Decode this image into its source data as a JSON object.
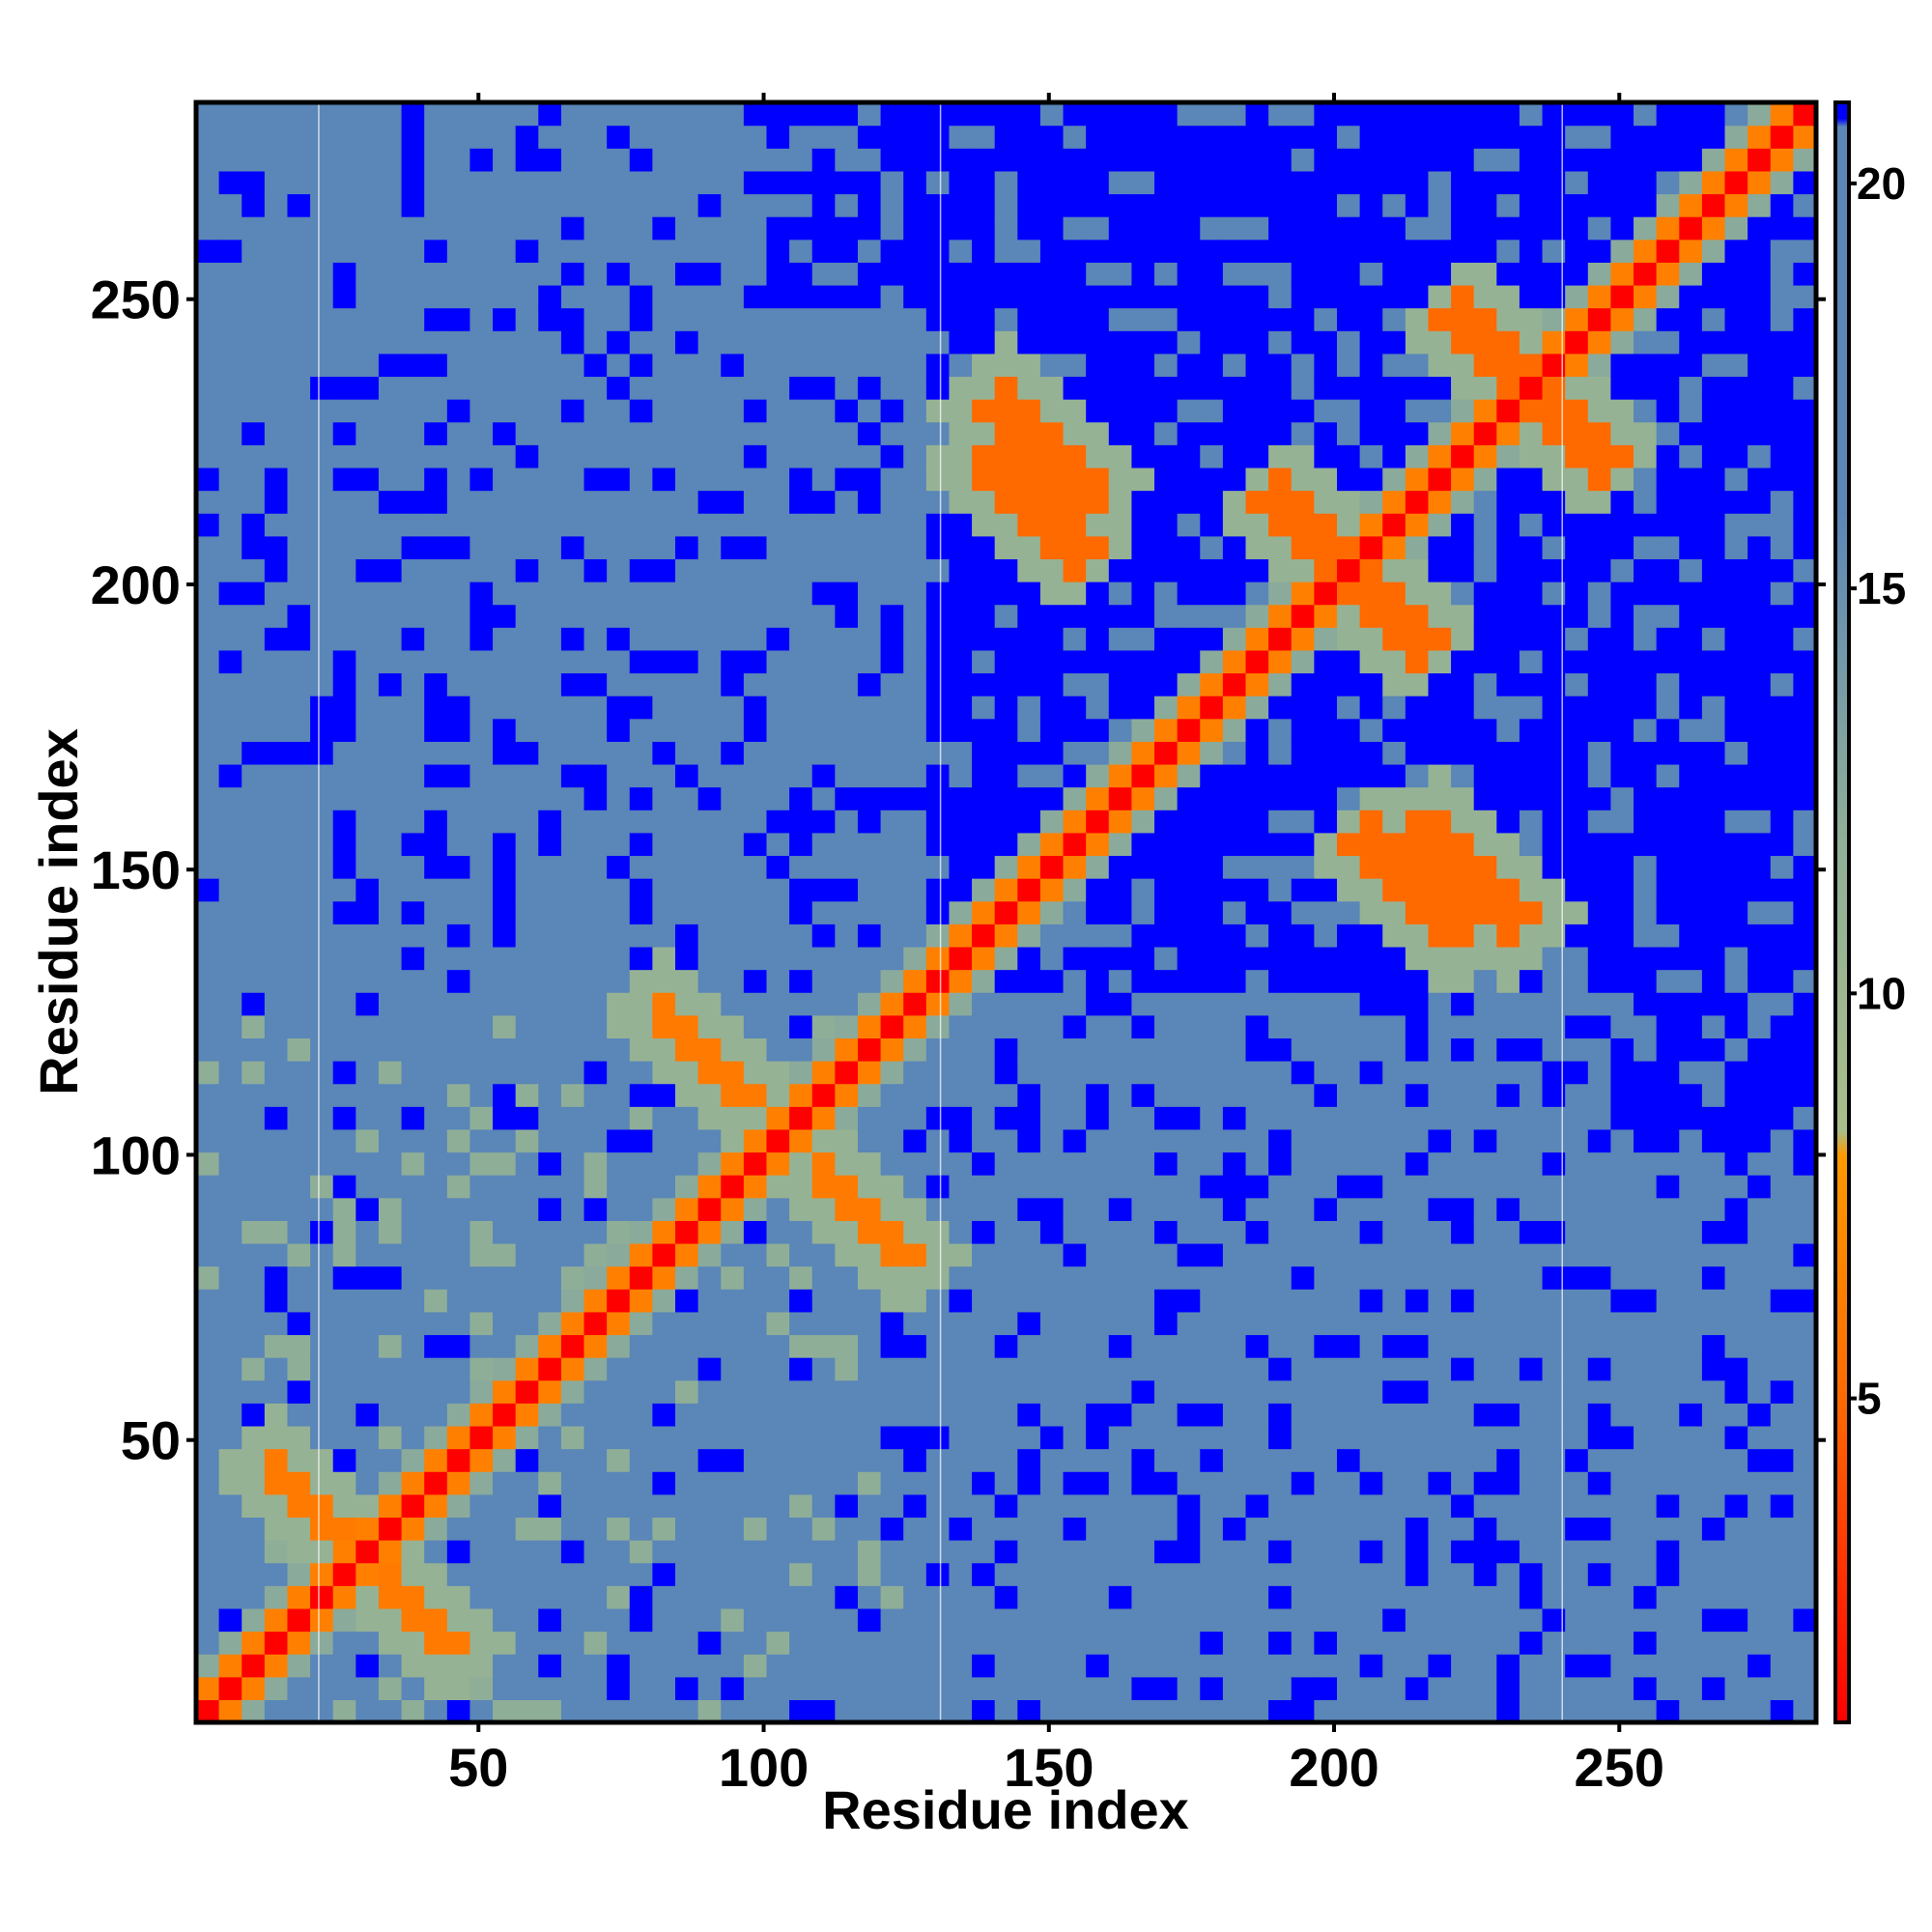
{
  "chart_data": {
    "type": "heatmap",
    "title": "",
    "xlabel": "Residue index",
    "ylabel": "Residue index",
    "x_range": [
      1,
      284
    ],
    "y_range": [
      1,
      284
    ],
    "x_ticks": [
      50,
      100,
      150,
      200,
      250
    ],
    "y_ticks": [
      50,
      100,
      150,
      200,
      250
    ],
    "colorbar": {
      "range": [
        1,
        21
      ],
      "ticks": [
        5,
        10,
        15,
        20
      ],
      "stops": [
        {
          "value": 1,
          "color": "#ff0000"
        },
        {
          "value": 5,
          "color": "#ff6a00"
        },
        {
          "value": 8,
          "color": "#ff9900"
        },
        {
          "value": 8.3,
          "color": "#a9be88"
        },
        {
          "value": 12,
          "color": "#8fae98"
        },
        {
          "value": 16,
          "color": "#5a86b8"
        },
        {
          "value": 20.7,
          "color": "#5a86b8"
        },
        {
          "value": 20.8,
          "color": "#0000ff"
        },
        {
          "value": 21,
          "color": "#0000ff"
        }
      ]
    },
    "values_description_units": "distance",
    "grid": false,
    "separator_lines_at_residue": [
      22,
      131,
      240
    ],
    "structure": {
      "diagonal": {
        "value": 1
      },
      "near_diagonal_band_width": 6,
      "cross_contacts": [
        {
          "i": 205,
          "j": 200,
          "value": 5,
          "orientation": "anti",
          "length": 12
        },
        {
          "i": 235,
          "j": 236,
          "value": 5,
          "orientation": "anti",
          "length": 14
        },
        {
          "i": 150,
          "j": 225,
          "value": 5,
          "orientation": "anti",
          "length": 10
        },
        {
          "i": 215,
          "j": 148,
          "value": 5,
          "orientation": "anti",
          "length": 10
        },
        {
          "i": 90,
          "j": 118,
          "value": 6,
          "orientation": "anti",
          "length": 10
        },
        {
          "i": 20,
          "j": 40,
          "value": 6,
          "orientation": "anti",
          "length": 8
        }
      ],
      "blue_regions": [
        {
          "x": [
            131,
            284
          ],
          "y": [
            140,
            284
          ],
          "value": 21
        },
        {
          "x": [
            160,
            200
          ],
          "y": [
            150,
            200
          ],
          "value": 21
        },
        {
          "x": [
            250,
            284
          ],
          "y": [
            100,
            284
          ],
          "value": 21
        }
      ]
    }
  }
}
